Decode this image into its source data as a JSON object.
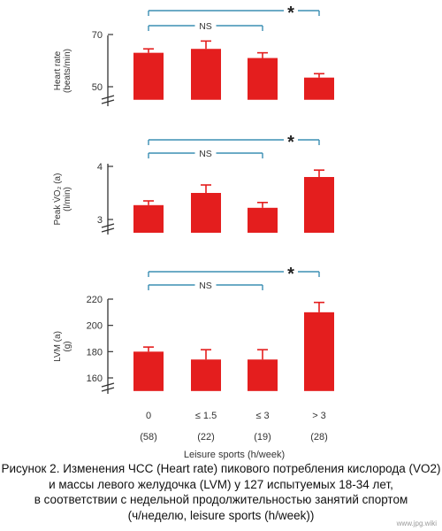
{
  "chart_data": [
    {
      "type": "bar",
      "ylabel_lines": [
        "Heart rate",
        "(beats/min)"
      ],
      "yticks": [
        50,
        70
      ],
      "ylim": [
        45,
        72
      ],
      "values": [
        63,
        64.5,
        61,
        53.5
      ],
      "errors": [
        1.5,
        3,
        2,
        1.5
      ],
      "bracket_label": "NS",
      "star": "*"
    },
    {
      "type": "bar",
      "ylabel_lines": [
        "Peak V̇O₂ (a)",
        "(l/min)"
      ],
      "yticks": [
        3,
        4
      ],
      "ylim": [
        2.75,
        4.05
      ],
      "values": [
        3.27,
        3.5,
        3.22,
        3.8
      ],
      "errors": [
        0.08,
        0.15,
        0.1,
        0.13
      ],
      "bracket_label": "NS",
      "star": "*"
    },
    {
      "type": "bar",
      "ylabel_lines": [
        "LVM (a)",
        "(g)"
      ],
      "yticks": [
        160,
        180,
        200,
        220
      ],
      "ylim": [
        150,
        222
      ],
      "values": [
        180,
        174,
        174,
        210
      ],
      "errors": [
        3.5,
        7.5,
        7.5,
        7.5
      ],
      "bracket_label": "NS",
      "star": "*"
    }
  ],
  "categories": [
    "0",
    "≤ 1.5",
    "≤ 3",
    "> 3"
  ],
  "counts": [
    "(58)",
    "(22)",
    "(19)",
    "(28)"
  ],
  "xlabel": "Leisure sports (h/week)",
  "colors": {
    "bar": "#e41e1e",
    "bracket": "#3b8fb4",
    "axis": "#333333"
  },
  "caption": {
    "line1": "Рисунок 2. Изменения ЧСС (Heart rate) пикового потребления кислорода (VO2)",
    "line2": "и массы левого желудочка (LVM) у 127 испытуемых 18-34 лет,",
    "line3": "в соответствии с недельной продолжительностью занятий спортом",
    "line4": "(ч/неделю, leisure sports (h/week))"
  },
  "watermark": "www.jpg.wiki"
}
